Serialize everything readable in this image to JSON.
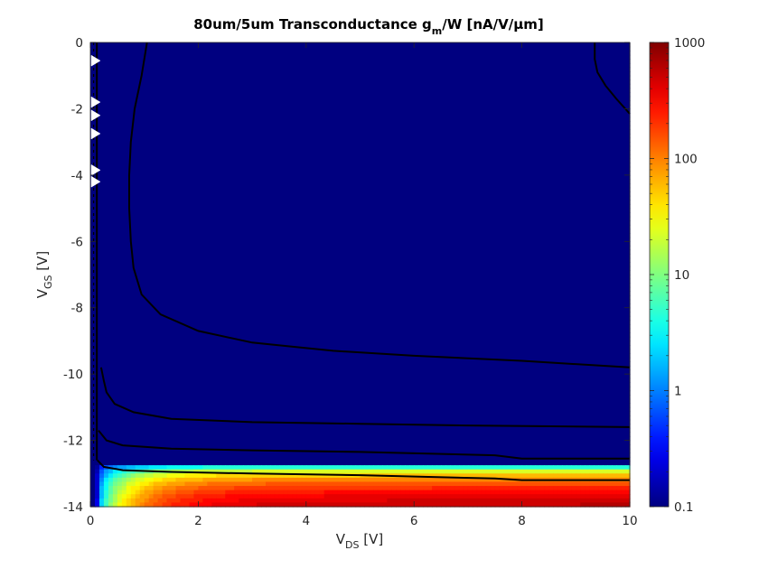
{
  "chart_data": {
    "type": "heatmap",
    "subtype": "filled-contour",
    "title_parts": {
      "main": "80um/5um Transconductance g",
      "sub": "m",
      "tail": "/W [nA/V/μm]"
    },
    "xlabel_parts": {
      "main": "V",
      "sub": "DS",
      "tail": " [V]"
    },
    "ylabel_parts": {
      "main": "V",
      "sub": "GS",
      "tail": " [V]"
    },
    "xlim": [
      0,
      10
    ],
    "ylim": [
      -14,
      0
    ],
    "xticks": [
      0,
      2,
      4,
      6,
      8,
      10
    ],
    "xtick_labels": [
      "0",
      "2",
      "4",
      "6",
      "8",
      "10"
    ],
    "yticks": [
      0,
      -2,
      -4,
      -6,
      -8,
      -10,
      -12,
      -14
    ],
    "ytick_labels": [
      "0",
      "-2",
      "-4",
      "-6",
      "-8",
      "-10",
      "-12",
      "-14"
    ],
    "colorbar": {
      "scale": "log",
      "range": [
        0.1,
        1000
      ],
      "ticks": [
        0.1,
        1,
        10,
        100,
        1000
      ],
      "tick_labels": [
        "0.1",
        "1",
        "10",
        "100",
        "1000"
      ],
      "colormap": "jet"
    },
    "contour_levels": [
      0.1,
      1,
      10,
      100,
      1000
    ],
    "contour_lines": [
      {
        "level": 1000,
        "points": [
          [
            9.35,
            0
          ],
          [
            9.35,
            -0.5
          ],
          [
            9.4,
            -0.9
          ],
          [
            9.55,
            -1.3
          ],
          [
            9.75,
            -1.7
          ],
          [
            10,
            -2.15
          ]
        ]
      },
      {
        "level": 100,
        "points": [
          [
            1.05,
            0
          ],
          [
            0.95,
            -1
          ],
          [
            0.82,
            -2
          ],
          [
            0.75,
            -3
          ],
          [
            0.72,
            -4
          ],
          [
            0.72,
            -5
          ],
          [
            0.75,
            -6
          ],
          [
            0.8,
            -6.8
          ],
          [
            0.95,
            -7.6
          ],
          [
            1.3,
            -8.2
          ],
          [
            2.0,
            -8.7
          ],
          [
            3.0,
            -9.05
          ],
          [
            4.5,
            -9.3
          ],
          [
            6.0,
            -9.45
          ],
          [
            8.0,
            -9.6
          ],
          [
            10,
            -9.8
          ]
        ]
      },
      {
        "level": 10,
        "points": [
          [
            0.2,
            -9.8
          ],
          [
            0.25,
            -10.2
          ],
          [
            0.3,
            -10.55
          ],
          [
            0.45,
            -10.9
          ],
          [
            0.8,
            -11.15
          ],
          [
            1.5,
            -11.35
          ],
          [
            3.0,
            -11.45
          ],
          [
            5.0,
            -11.5
          ],
          [
            7.0,
            -11.55
          ],
          [
            10,
            -11.6
          ]
        ]
      },
      {
        "level": 1,
        "points": [
          [
            0.15,
            -11.7
          ],
          [
            0.3,
            -12.0
          ],
          [
            0.6,
            -12.15
          ],
          [
            1.5,
            -12.25
          ],
          [
            3.0,
            -12.3
          ],
          [
            5.0,
            -12.35
          ],
          [
            7.5,
            -12.45
          ],
          [
            8.0,
            -12.55
          ],
          [
            10,
            -12.55
          ]
        ]
      },
      {
        "level": 0.1,
        "points": [
          [
            0.13,
            -12.6
          ],
          [
            0.25,
            -12.8
          ],
          [
            0.6,
            -12.9
          ],
          [
            1.5,
            -12.95
          ],
          [
            3.0,
            -13.0
          ],
          [
            5.0,
            -13.05
          ],
          [
            7.5,
            -13.15
          ],
          [
            8.0,
            -13.2
          ],
          [
            10,
            -13.2
          ]
        ]
      }
    ],
    "field_model": {
      "description": "approximate log10 of transconductance per width vs VDS (x) and VGS (y)",
      "peak_log10": 3.05,
      "threshold_vgs": -12.75
    },
    "grid": false,
    "colorbar_position": "right"
  }
}
